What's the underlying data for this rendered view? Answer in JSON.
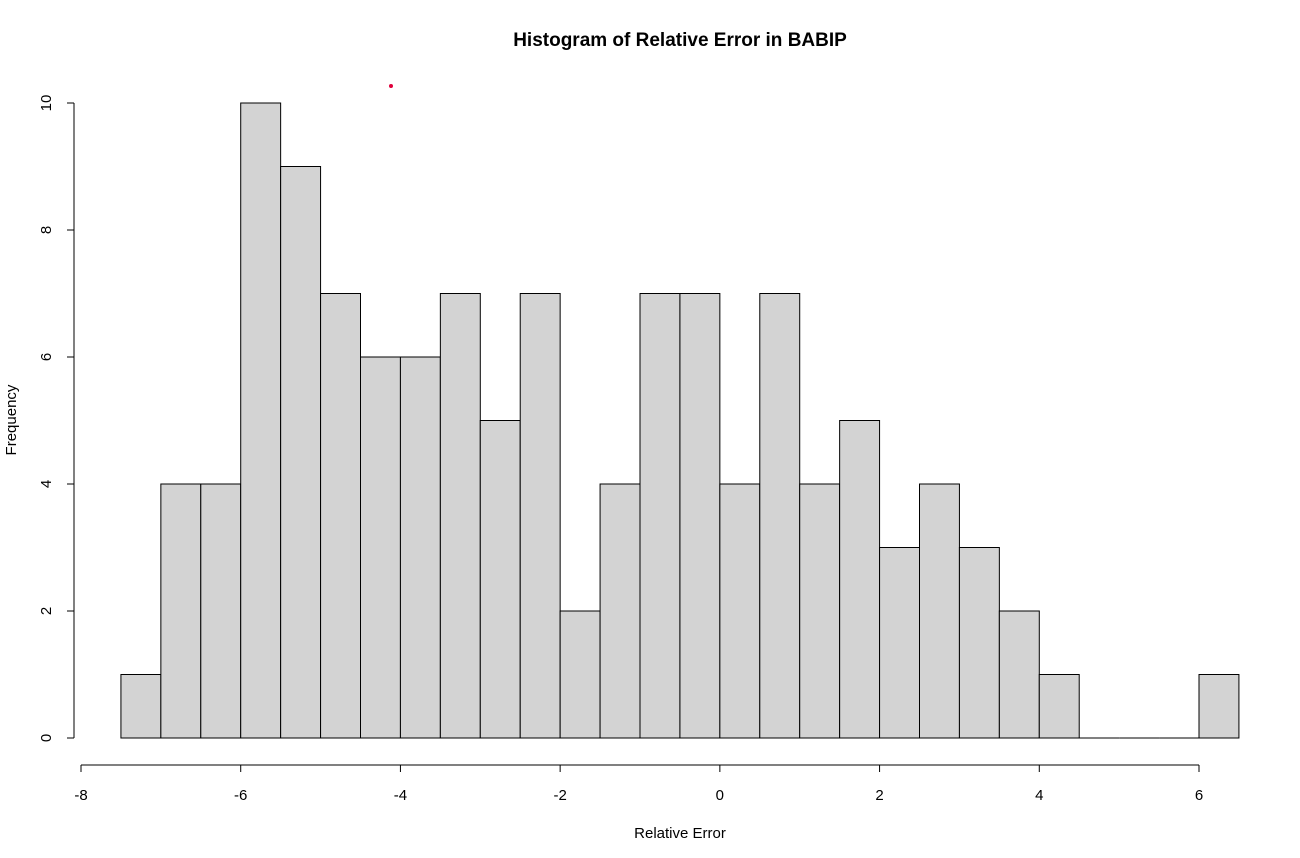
{
  "chart_data": {
    "type": "bar",
    "title": "Histogram of Relative Error in BABIP",
    "xlabel": "Relative Error",
    "ylabel": "Frequency",
    "bin_width": 0.5,
    "bins_start": [
      -7.5,
      -7,
      -6.5,
      -6,
      -5.5,
      -5,
      -4.5,
      -4,
      -3.5,
      -3,
      -2.5,
      -2,
      -1.5,
      -1,
      -0.5,
      0,
      0.5,
      1,
      1.5,
      2,
      2.5,
      3,
      3.5,
      4,
      4.5,
      5,
      5.5,
      6
    ],
    "values": [
      1,
      4,
      4,
      10,
      9,
      7,
      6,
      6,
      7,
      5,
      7,
      2,
      4,
      7,
      7,
      4,
      7,
      4,
      5,
      3,
      4,
      3,
      2,
      1,
      0,
      0,
      0,
      1
    ],
    "xlim": [
      -8,
      6
    ],
    "ylim": [
      0,
      10
    ],
    "x_ticks": [
      "-8",
      "-6",
      "-4",
      "-2",
      "0",
      "2",
      "4",
      "6"
    ],
    "y_ticks": [
      "0",
      "2",
      "4",
      "6",
      "8",
      "10"
    ],
    "grid": false,
    "colors": {
      "bar_fill": "#d3d3d3",
      "bar_stroke": "#000000",
      "marker": "#e0003c"
    }
  }
}
